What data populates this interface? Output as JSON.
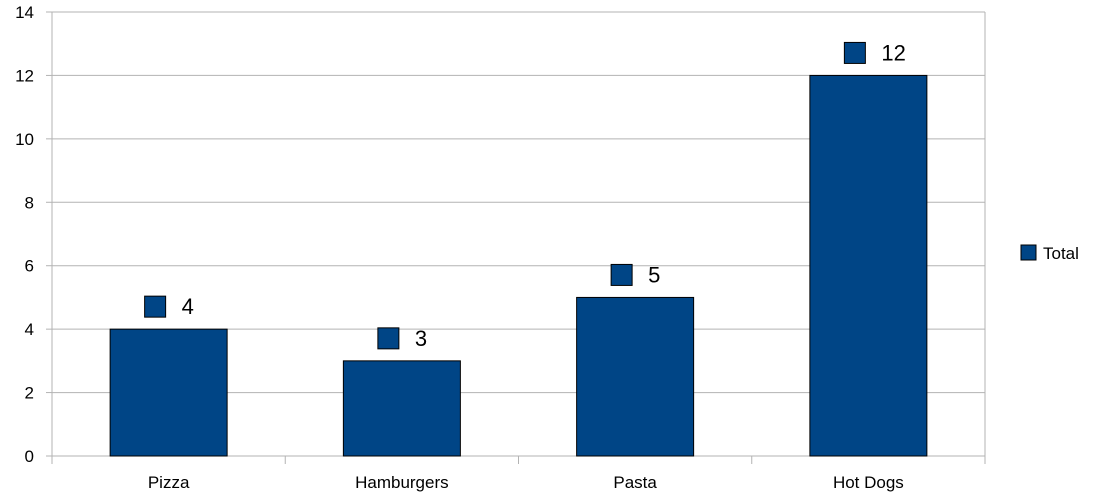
{
  "chart_data": {
    "type": "bar",
    "categories": [
      "Pizza",
      "Hamburgers",
      "Pasta",
      "Hot Dogs"
    ],
    "series": [
      {
        "name": "Total",
        "values": [
          4,
          3,
          5,
          12
        ],
        "color": "#004586"
      }
    ],
    "title": "",
    "xlabel": "",
    "ylabel": "",
    "ylim": [
      0,
      14
    ],
    "yticks": [
      0,
      2,
      4,
      6,
      8,
      10,
      12,
      14
    ],
    "grid": true,
    "legend_position": "right",
    "data_labels": true
  }
}
